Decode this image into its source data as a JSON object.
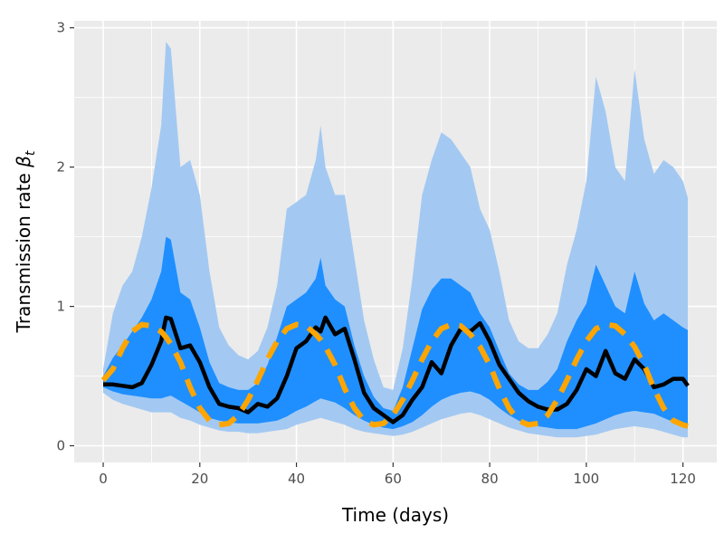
{
  "chart_data": {
    "type": "area",
    "xlabel": "Time (days)",
    "ylabel": "Transmission rate",
    "ylabel_symbol": "β",
    "ylabel_subscript": "t",
    "xlim": [
      -6,
      127
    ],
    "ylim": [
      -0.12,
      3.05
    ],
    "x_ticks": [
      0,
      20,
      40,
      60,
      80,
      100,
      120
    ],
    "x_tick_labels": [
      "0",
      "20",
      "40",
      "60",
      "80",
      "100",
      "120"
    ],
    "y_ticks": [
      0,
      1,
      2,
      3
    ],
    "y_tick_labels": [
      "0",
      "1",
      "2",
      "3"
    ],
    "grid": true,
    "legend": "none",
    "colors": {
      "panel": "#ebebeb",
      "grid": "#ffffff",
      "outer_band": "#a3c9f2",
      "inner_band": "#1f8fff",
      "estimate": "#000000",
      "truth": "#ffa500"
    },
    "x": [
      0,
      2,
      4,
      6,
      8,
      10,
      12,
      13,
      14,
      16,
      18,
      20,
      22,
      24,
      26,
      28,
      30,
      32,
      34,
      36,
      38,
      40,
      42,
      44,
      45,
      46,
      48,
      50,
      52,
      54,
      56,
      58,
      60,
      62,
      64,
      66,
      68,
      70,
      72,
      74,
      76,
      78,
      80,
      82,
      84,
      86,
      88,
      90,
      92,
      94,
      96,
      98,
      100,
      102,
      104,
      106,
      108,
      110,
      112,
      114,
      116,
      118,
      120,
      121
    ],
    "series": [
      {
        "role": "outer band",
        "lower": [
          0.38,
          0.33,
          0.3,
          0.28,
          0.26,
          0.24,
          0.24,
          0.24,
          0.24,
          0.2,
          0.18,
          0.15,
          0.13,
          0.11,
          0.1,
          0.1,
          0.09,
          0.09,
          0.1,
          0.11,
          0.12,
          0.15,
          0.17,
          0.19,
          0.2,
          0.19,
          0.17,
          0.15,
          0.12,
          0.1,
          0.09,
          0.08,
          0.07,
          0.08,
          0.1,
          0.13,
          0.16,
          0.19,
          0.21,
          0.23,
          0.24,
          0.22,
          0.19,
          0.16,
          0.13,
          0.11,
          0.09,
          0.08,
          0.07,
          0.06,
          0.06,
          0.06,
          0.07,
          0.08,
          0.1,
          0.12,
          0.13,
          0.14,
          0.13,
          0.12,
          0.1,
          0.08,
          0.06,
          0.06
        ],
        "upper": [
          0.55,
          0.95,
          1.15,
          1.25,
          1.5,
          1.85,
          2.3,
          2.9,
          2.85,
          2.0,
          2.05,
          1.8,
          1.25,
          0.85,
          0.72,
          0.65,
          0.62,
          0.68,
          0.85,
          1.15,
          1.7,
          1.75,
          1.8,
          2.05,
          2.3,
          2.0,
          1.8,
          1.8,
          1.35,
          0.9,
          0.62,
          0.42,
          0.4,
          0.7,
          1.2,
          1.8,
          2.05,
          2.25,
          2.2,
          2.1,
          2.0,
          1.7,
          1.55,
          1.25,
          0.9,
          0.75,
          0.7,
          0.7,
          0.8,
          0.95,
          1.3,
          1.55,
          1.9,
          2.65,
          2.4,
          2.0,
          1.9,
          2.7,
          2.2,
          1.95,
          2.05,
          2.0,
          1.9,
          1.78
        ]
      },
      {
        "role": "inner band",
        "lower": [
          0.42,
          0.39,
          0.37,
          0.36,
          0.35,
          0.34,
          0.34,
          0.35,
          0.36,
          0.32,
          0.28,
          0.24,
          0.2,
          0.18,
          0.17,
          0.16,
          0.16,
          0.16,
          0.17,
          0.18,
          0.21,
          0.25,
          0.28,
          0.32,
          0.34,
          0.33,
          0.31,
          0.27,
          0.22,
          0.18,
          0.15,
          0.13,
          0.12,
          0.14,
          0.17,
          0.22,
          0.28,
          0.33,
          0.36,
          0.38,
          0.39,
          0.37,
          0.33,
          0.27,
          0.22,
          0.18,
          0.15,
          0.14,
          0.13,
          0.12,
          0.12,
          0.12,
          0.14,
          0.16,
          0.19,
          0.22,
          0.24,
          0.25,
          0.24,
          0.23,
          0.2,
          0.17,
          0.14,
          0.13
        ],
        "upper": [
          0.5,
          0.63,
          0.72,
          0.82,
          0.92,
          1.05,
          1.25,
          1.5,
          1.48,
          1.1,
          1.05,
          0.85,
          0.6,
          0.45,
          0.42,
          0.4,
          0.4,
          0.45,
          0.58,
          0.78,
          1.0,
          1.05,
          1.1,
          1.2,
          1.35,
          1.15,
          1.05,
          1.0,
          0.72,
          0.5,
          0.35,
          0.27,
          0.25,
          0.42,
          0.7,
          0.98,
          1.12,
          1.2,
          1.2,
          1.15,
          1.1,
          0.95,
          0.85,
          0.68,
          0.52,
          0.44,
          0.4,
          0.4,
          0.46,
          0.55,
          0.75,
          0.9,
          1.02,
          1.3,
          1.15,
          1.0,
          0.95,
          1.25,
          1.02,
          0.9,
          0.95,
          0.9,
          0.85,
          0.83
        ]
      },
      {
        "role": "estimate",
        "values": [
          0.44,
          0.44,
          0.43,
          0.42,
          0.45,
          0.58,
          0.75,
          0.92,
          0.91,
          0.7,
          0.72,
          0.6,
          0.42,
          0.3,
          0.28,
          0.27,
          0.24,
          0.3,
          0.28,
          0.34,
          0.5,
          0.7,
          0.75,
          0.85,
          0.82,
          0.92,
          0.8,
          0.84,
          0.62,
          0.38,
          0.27,
          0.22,
          0.17,
          0.22,
          0.33,
          0.42,
          0.6,
          0.52,
          0.72,
          0.84,
          0.82,
          0.88,
          0.75,
          0.58,
          0.48,
          0.38,
          0.32,
          0.28,
          0.26,
          0.26,
          0.3,
          0.4,
          0.55,
          0.5,
          0.68,
          0.52,
          0.48,
          0.62,
          0.55,
          0.42,
          0.44,
          0.48,
          0.48,
          0.43
        ]
      },
      {
        "role": "truth",
        "values": [
          0.47,
          0.55,
          0.7,
          0.82,
          0.87,
          0.86,
          0.82,
          0.78,
          0.73,
          0.6,
          0.42,
          0.27,
          0.18,
          0.15,
          0.16,
          0.22,
          0.33,
          0.47,
          0.62,
          0.75,
          0.84,
          0.87,
          0.86,
          0.8,
          0.76,
          0.71,
          0.58,
          0.41,
          0.27,
          0.18,
          0.15,
          0.16,
          0.22,
          0.33,
          0.47,
          0.62,
          0.75,
          0.84,
          0.87,
          0.86,
          0.8,
          0.71,
          0.58,
          0.41,
          0.27,
          0.18,
          0.15,
          0.16,
          0.22,
          0.33,
          0.47,
          0.62,
          0.75,
          0.84,
          0.87,
          0.86,
          0.8,
          0.71,
          0.58,
          0.41,
          0.27,
          0.18,
          0.15,
          0.14
        ]
      }
    ]
  }
}
